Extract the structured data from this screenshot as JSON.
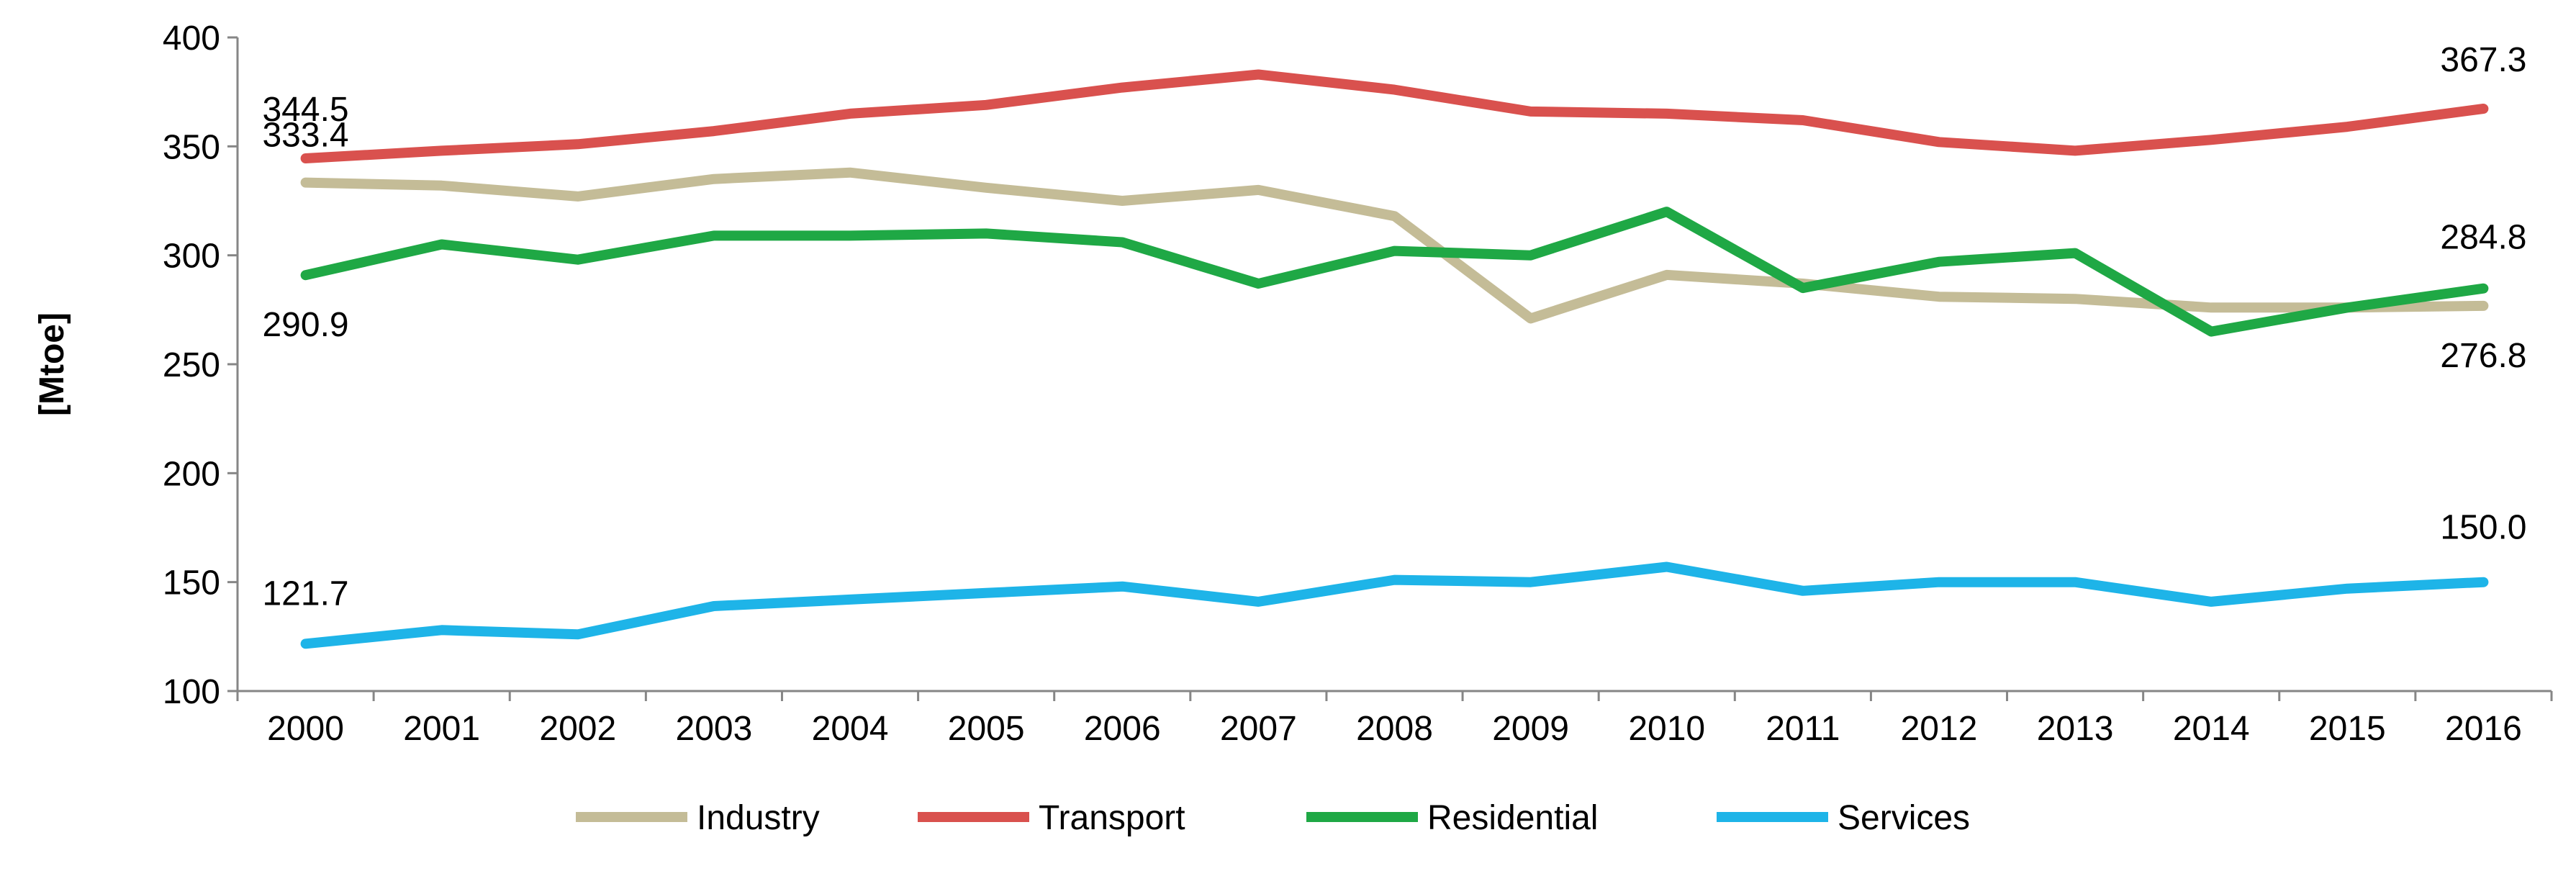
{
  "chart_data": {
    "type": "line",
    "title": "",
    "xlabel": "",
    "ylabel": "[Mtoe]",
    "ylim": [
      100,
      400
    ],
    "yticks": [
      100,
      150,
      200,
      250,
      300,
      350,
      400
    ],
    "grid": false,
    "legend_position": "bottom",
    "x": [
      "2000",
      "2001",
      "2002",
      "2003",
      "2004",
      "2005",
      "2006",
      "2007",
      "2008",
      "2009",
      "2010",
      "2011",
      "2012",
      "2013",
      "2014",
      "2015",
      "2016"
    ],
    "series": [
      {
        "name": "Industry",
        "color": "#C4BC97",
        "values": [
          333.4,
          332,
          327,
          335,
          338,
          331,
          325,
          330,
          318,
          271,
          291,
          287,
          281,
          280,
          276,
          276,
          276.8
        ]
      },
      {
        "name": "Transport",
        "color": "#D9514E",
        "values": [
          344.5,
          348,
          351,
          357,
          365,
          369,
          377,
          383,
          376,
          366,
          365,
          362,
          352,
          348,
          353,
          359,
          367.3
        ]
      },
      {
        "name": "Residential",
        "color": "#1FA845",
        "values": [
          290.9,
          305,
          298,
          309,
          309,
          310,
          306,
          287,
          302,
          300,
          320,
          285,
          297,
          301,
          265,
          276,
          284.8
        ]
      },
      {
        "name": "Services",
        "color": "#1EB4E8",
        "values": [
          121.7,
          128,
          126,
          139,
          142,
          145,
          148,
          141,
          151,
          150,
          157,
          146,
          150,
          150,
          141,
          147,
          150.0
        ]
      }
    ],
    "annotations": [
      {
        "text": "344.5",
        "series": "Transport",
        "index": 0
      },
      {
        "text": "333.4",
        "series": "Industry",
        "index": 0
      },
      {
        "text": "290.9",
        "series": "Residential",
        "index": 0
      },
      {
        "text": "121.7",
        "series": "Services",
        "index": 0
      },
      {
        "text": "367.3",
        "series": "Transport",
        "index": 16
      },
      {
        "text": "284.8",
        "series": "Residential",
        "index": 16
      },
      {
        "text": "276.8",
        "series": "Industry",
        "index": 16
      },
      {
        "text": "150.0",
        "series": "Services",
        "index": 16
      }
    ]
  }
}
